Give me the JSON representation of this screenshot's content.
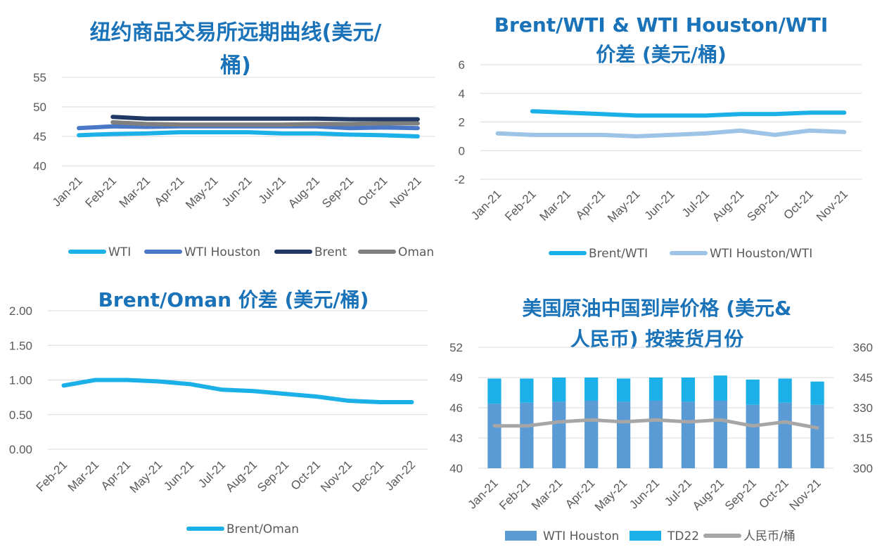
{
  "colors": {
    "wti": "#1cb0e8",
    "wti_houston": "#4a78c6",
    "brent": "#1f3864",
    "oman": "#7f7f7f",
    "spread1": "#1cb0e8",
    "spread2": "#9dc3e6",
    "bar_base": "#5b9bd5",
    "bar_top": "#1cb0e8",
    "rmb": "#a6a6a6",
    "title": "#1a73b8"
  },
  "chart_data": [
    {
      "type": "line",
      "title_lines": [
        "纽约商品交易所远期曲线(美元/",
        "桶)"
      ],
      "categories": [
        "Jan-21",
        "Feb-21",
        "Mar-21",
        "Apr-21",
        "May-21",
        "Jun-21",
        "Jul-21",
        "Aug-21",
        "Sep-21",
        "Oct-21",
        "Nov-21"
      ],
      "ylim": [
        40,
        55
      ],
      "yticks": [
        "40",
        "45",
        "50",
        "55"
      ],
      "series": [
        {
          "name": "WTI",
          "color_key": "wti",
          "values": [
            45.2,
            45.4,
            45.5,
            45.7,
            45.7,
            45.7,
            45.5,
            45.5,
            45.3,
            45.2,
            45.0
          ]
        },
        {
          "name": "WTI Houston",
          "color_key": "wti_houston",
          "values": [
            46.4,
            46.7,
            46.6,
            46.7,
            46.7,
            46.7,
            46.7,
            46.7,
            46.4,
            46.5,
            46.4
          ]
        },
        {
          "name": "Brent",
          "color_key": "brent",
          "values": [
            null,
            48.3,
            48.0,
            48.0,
            48.0,
            48.0,
            48.0,
            48.0,
            47.9,
            47.9,
            47.9
          ]
        },
        {
          "name": "Oman",
          "color_key": "oman",
          "values": [
            null,
            47.4,
            47.1,
            47.0,
            47.0,
            47.0,
            47.0,
            47.1,
            47.1,
            47.2,
            47.2
          ]
        }
      ]
    },
    {
      "type": "line",
      "title_lines": [
        "Brent/WTI & WTI Houston/WTI",
        "价差 (美元/桶)"
      ],
      "categories": [
        "Jan-21",
        "Feb-21",
        "Mar-21",
        "Apr-21",
        "May-21",
        "Jun-21",
        "Jul-21",
        "Aug-21",
        "Sep-21",
        "Oct-21",
        "Nov-21"
      ],
      "ylim": [
        -2,
        6
      ],
      "yticks": [
        "-2",
        "0",
        "2",
        "4",
        "6"
      ],
      "series": [
        {
          "name": "Brent/WTI",
          "color_key": "spread1",
          "values": [
            null,
            2.75,
            2.65,
            2.55,
            2.45,
            2.45,
            2.45,
            2.55,
            2.55,
            2.65,
            2.65
          ]
        },
        {
          "name": "WTI Houston/WTI",
          "color_key": "spread2",
          "values": [
            1.2,
            1.1,
            1.1,
            1.1,
            1.0,
            1.1,
            1.2,
            1.4,
            1.1,
            1.4,
            1.3
          ]
        }
      ]
    },
    {
      "type": "line",
      "title_lines": [
        "Brent/Oman 价差 (美元/桶)"
      ],
      "categories": [
        "Feb-21",
        "Mar-21",
        "Apr-21",
        "May-21",
        "Jun-21",
        "Jul-21",
        "Aug-21",
        "Sep-21",
        "Oct-21",
        "Nov-21",
        "Dec-21",
        "Jan-22"
      ],
      "ylim": [
        0,
        2
      ],
      "yticks": [
        "0.00",
        "0.50",
        "1.00",
        "1.50",
        "2.00"
      ],
      "series": [
        {
          "name": "Brent/Oman",
          "color_key": "spread1",
          "values": [
            0.92,
            1.0,
            1.0,
            0.98,
            0.94,
            0.86,
            0.84,
            0.8,
            0.76,
            0.7,
            0.68,
            0.68
          ]
        }
      ]
    },
    {
      "type": "bar",
      "title_lines": [
        "美国原油中国到岸价格 (美元&",
        "人民币) 按装货月份"
      ],
      "categories": [
        "Jan-21",
        "Feb-21",
        "Mar-21",
        "Apr-21",
        "May-21",
        "Jun-21",
        "Jul-21",
        "Aug-21",
        "Sep-21",
        "Oct-21",
        "Nov-21"
      ],
      "ylim": [
        40,
        52
      ],
      "yticks": [
        "40",
        "43",
        "46",
        "49",
        "52"
      ],
      "y2lim": [
        300,
        360
      ],
      "y2ticks": [
        "300",
        "315",
        "330",
        "345",
        "360"
      ],
      "series": [
        {
          "name": "WTI Houston",
          "color_key": "bar_base",
          "values": [
            46.4,
            46.5,
            46.6,
            46.7,
            46.6,
            46.7,
            46.6,
            46.7,
            46.3,
            46.5,
            46.3
          ]
        },
        {
          "name": "TD22",
          "color_key": "bar_top",
          "values": [
            2.5,
            2.4,
            2.4,
            2.3,
            2.3,
            2.3,
            2.4,
            2.5,
            2.5,
            2.4,
            2.3
          ]
        },
        {
          "name": "人民币/桶",
          "color_key": "rmb",
          "axis": "right",
          "values": [
            321,
            321,
            323,
            324,
            323,
            324,
            323,
            324,
            321,
            323,
            320
          ]
        }
      ]
    }
  ]
}
